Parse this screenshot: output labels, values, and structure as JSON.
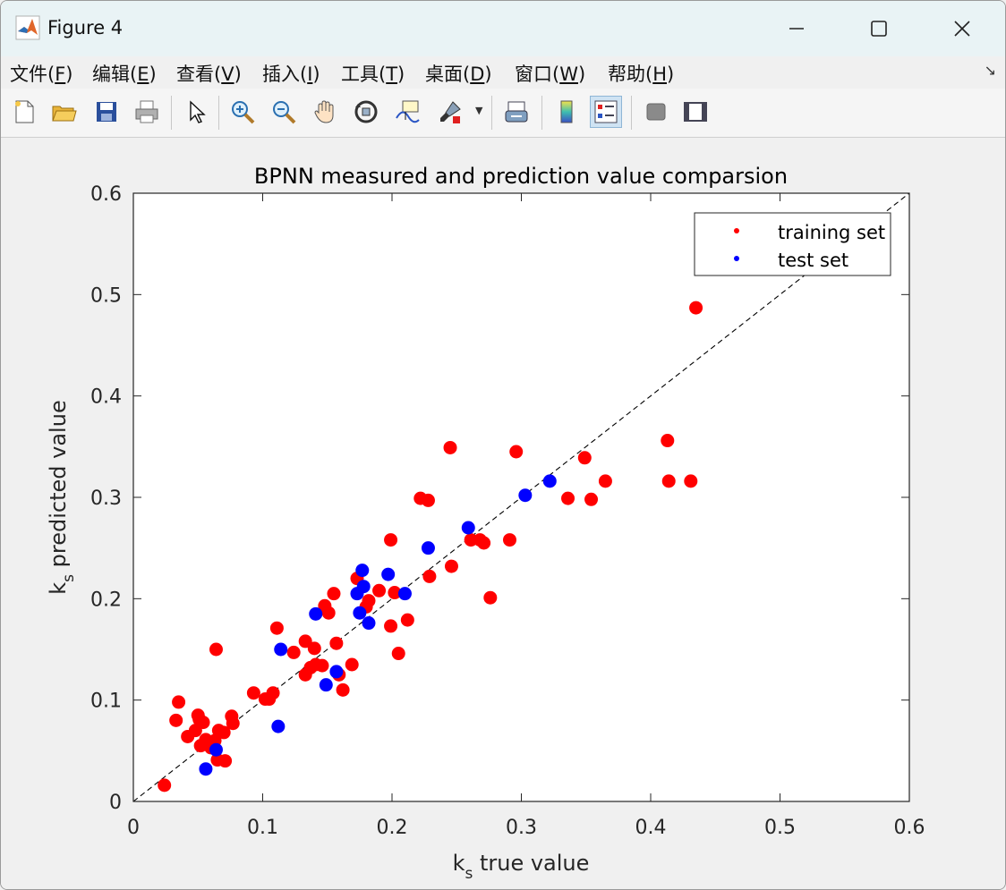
{
  "window": {
    "title": "Figure 4"
  },
  "menu": [
    {
      "label": "文件(",
      "acc": "F",
      "end": ")"
    },
    {
      "label": "编辑(",
      "acc": "E",
      "end": ")"
    },
    {
      "label": "查看(",
      "acc": "V",
      "end": ")"
    },
    {
      "label": "插入(",
      "acc": "I",
      "end": ")"
    },
    {
      "label": "工具(",
      "acc": "T",
      "end": ")"
    },
    {
      "label": "桌面(",
      "acc": "D",
      "end": ")"
    },
    {
      "label": "窗口(",
      "acc": "W",
      "end": ")"
    },
    {
      "label": "帮助(",
      "acc": "H",
      "end": ")"
    }
  ],
  "toolbar_icons": [
    "new-file-icon",
    "open-folder-icon",
    "save-icon",
    "print-icon",
    "pointer-icon",
    "zoom-in-icon",
    "zoom-out-icon",
    "pan-hand-icon",
    "rotate-3d-icon",
    "data-cursor-icon",
    "brush-icon",
    "link-plot-icon",
    "colorbar-icon",
    "legend-icon",
    "hide-plot-tools-icon",
    "show-plot-tools-icon"
  ],
  "colors": {
    "training": "#ff0000",
    "test": "#0000ff",
    "axes": "#262626"
  },
  "chart_data": {
    "type": "scatter",
    "title": "BPNN measured and prediction value comparsion",
    "xlabel": {
      "main": "k",
      "sub": "s",
      "rest": " true value"
    },
    "ylabel": {
      "main": "k",
      "sub": "s",
      "rest": " predicted value"
    },
    "xlim": [
      0,
      0.6
    ],
    "ylim": [
      0,
      0.6
    ],
    "xticks": [
      "0",
      "0.1",
      "0.2",
      "0.3",
      "0.4",
      "0.5",
      "0.6"
    ],
    "yticks": [
      "0",
      "0.1",
      "0.2",
      "0.3",
      "0.4",
      "0.5",
      "0.6"
    ],
    "grid": false,
    "legend_position": "top-right",
    "reference_line": {
      "style": "dashed",
      "from": [
        0,
        0
      ],
      "to": [
        0.6,
        0.6
      ]
    },
    "series": [
      {
        "name": "training set",
        "color": "#ff0000",
        "points": [
          [
            0.024,
            0.016
          ],
          [
            0.033,
            0.08
          ],
          [
            0.035,
            0.098
          ],
          [
            0.042,
            0.064
          ],
          [
            0.048,
            0.07
          ],
          [
            0.05,
            0.085
          ],
          [
            0.051,
            0.081
          ],
          [
            0.052,
            0.055
          ],
          [
            0.054,
            0.078
          ],
          [
            0.056,
            0.061
          ],
          [
            0.058,
            0.058
          ],
          [
            0.06,
            0.053
          ],
          [
            0.063,
            0.06
          ],
          [
            0.064,
            0.15
          ],
          [
            0.065,
            0.041
          ],
          [
            0.066,
            0.07
          ],
          [
            0.07,
            0.068
          ],
          [
            0.071,
            0.04
          ],
          [
            0.076,
            0.084
          ],
          [
            0.077,
            0.077
          ],
          [
            0.093,
            0.107
          ],
          [
            0.102,
            0.101
          ],
          [
            0.105,
            0.101
          ],
          [
            0.108,
            0.107
          ],
          [
            0.111,
            0.171
          ],
          [
            0.124,
            0.147
          ],
          [
            0.133,
            0.158
          ],
          [
            0.133,
            0.125
          ],
          [
            0.137,
            0.132
          ],
          [
            0.14,
            0.151
          ],
          [
            0.141,
            0.135
          ],
          [
            0.146,
            0.134
          ],
          [
            0.148,
            0.193
          ],
          [
            0.151,
            0.186
          ],
          [
            0.155,
            0.205
          ],
          [
            0.157,
            0.156
          ],
          [
            0.159,
            0.125
          ],
          [
            0.162,
            0.11
          ],
          [
            0.169,
            0.135
          ],
          [
            0.173,
            0.22
          ],
          [
            0.18,
            0.192
          ],
          [
            0.182,
            0.198
          ],
          [
            0.19,
            0.208
          ],
          [
            0.199,
            0.258
          ],
          [
            0.199,
            0.173
          ],
          [
            0.202,
            0.206
          ],
          [
            0.205,
            0.146
          ],
          [
            0.212,
            0.179
          ],
          [
            0.222,
            0.299
          ],
          [
            0.228,
            0.297
          ],
          [
            0.229,
            0.222
          ],
          [
            0.245,
            0.349
          ],
          [
            0.246,
            0.232
          ],
          [
            0.261,
            0.258
          ],
          [
            0.268,
            0.258
          ],
          [
            0.271,
            0.255
          ],
          [
            0.276,
            0.201
          ],
          [
            0.291,
            0.258
          ],
          [
            0.296,
            0.345
          ],
          [
            0.336,
            0.299
          ],
          [
            0.349,
            0.339
          ],
          [
            0.354,
            0.298
          ],
          [
            0.365,
            0.316
          ],
          [
            0.413,
            0.356
          ],
          [
            0.414,
            0.316
          ],
          [
            0.431,
            0.316
          ],
          [
            0.435,
            0.487
          ]
        ]
      },
      {
        "name": "test set",
        "color": "#0000ff",
        "points": [
          [
            0.056,
            0.032
          ],
          [
            0.064,
            0.051
          ],
          [
            0.112,
            0.074
          ],
          [
            0.114,
            0.15
          ],
          [
            0.141,
            0.185
          ],
          [
            0.149,
            0.115
          ],
          [
            0.157,
            0.128
          ],
          [
            0.173,
            0.205
          ],
          [
            0.175,
            0.186
          ],
          [
            0.177,
            0.228
          ],
          [
            0.178,
            0.212
          ],
          [
            0.182,
            0.176
          ],
          [
            0.197,
            0.224
          ],
          [
            0.21,
            0.205
          ],
          [
            0.228,
            0.25
          ],
          [
            0.259,
            0.27
          ],
          [
            0.303,
            0.302
          ],
          [
            0.322,
            0.316
          ]
        ]
      }
    ]
  }
}
